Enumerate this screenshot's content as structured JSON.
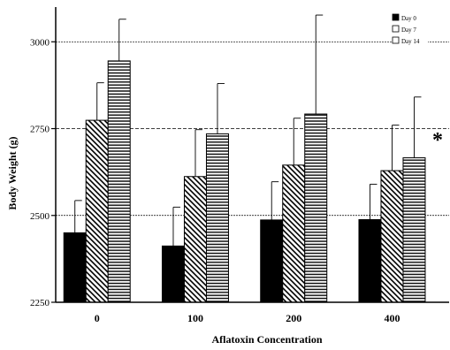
{
  "chart_data": {
    "type": "bar",
    "title": "",
    "xlabel": "Aflatoxin Concentration",
    "ylabel": "Body Weight (g)",
    "categories": [
      "0",
      "100",
      "200",
      "400"
    ],
    "ylim": [
      2250,
      3100
    ],
    "yticks": [
      2250,
      2500,
      2750,
      3000
    ],
    "grid": true,
    "legend_position": "top-right",
    "series": [
      {
        "name": "Day 0",
        "values": [
          2450,
          2412,
          2487,
          2488
        ],
        "errors": [
          93,
          112,
          110,
          102
        ],
        "pattern": "solid"
      },
      {
        "name": "Day 7",
        "values": [
          2774,
          2612,
          2645,
          2629
        ],
        "errors": [
          108,
          135,
          135,
          131
        ],
        "pattern": "diagonal"
      },
      {
        "name": "Day 14",
        "values": [
          2945,
          2735,
          2792,
          2666
        ],
        "errors": [
          120,
          145,
          285,
          175
        ],
        "pattern": "horizontal"
      }
    ],
    "annotations": [
      {
        "text": "*",
        "category": "400"
      }
    ]
  }
}
